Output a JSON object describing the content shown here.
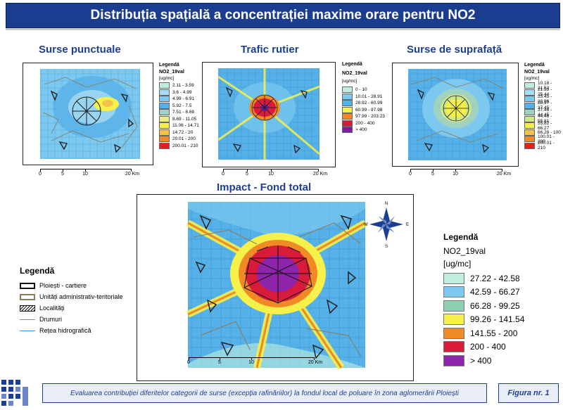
{
  "title": "Distribuția spațială a concentrației maxime orare pentru NO2",
  "maps": [
    {
      "subtitle": "Surse punctuale",
      "legend_title": "Legendă",
      "layer": "NO2_19val",
      "unit": "[ug/mc]",
      "classes": [
        "2.11 - 3.59",
        "3.6 - 4.99",
        "4.99 - 6.91",
        "5.92 - 7.5",
        "7.51 - 8.68",
        "8.69 - 11.05",
        "11.06 - 14.71",
        "14.72 - 20",
        "20.01 - 200",
        "200.01 - 210"
      ],
      "colors": [
        "#bfeee0",
        "#a8dcf3",
        "#7cc8ee",
        "#56b1e8",
        "#9fd3c0",
        "#e7ef80",
        "#f5f14a",
        "#f5c24a",
        "#f08a24",
        "#e0201c"
      ],
      "scale_labels": [
        "0",
        "5",
        "10",
        "20 Km"
      ]
    },
    {
      "subtitle": "Trafic rutier",
      "legend_title": "Legendă",
      "layer": "NO2_19val",
      "unit": "[ug/mc]",
      "classes": [
        "0 - 10",
        "10.01 - 28.91",
        "28.92 - 60.99",
        "60.99 - 97.98",
        "97.99 - 203.23",
        "200 - 400",
        "> 400"
      ],
      "colors": [
        "#bfeee0",
        "#7cc8ee",
        "#56b1e8",
        "#f5f14a",
        "#f08a24",
        "#d81b3a",
        "#7b1fa2"
      ],
      "scale_labels": [
        "0",
        "5",
        "10",
        "20 Km"
      ]
    },
    {
      "subtitle": "Surse de suprafață",
      "legend_title": "Legendă",
      "layer": "NO2_19val",
      "unit": "[ug/mc]",
      "classes": [
        "10.18 - 21.52",
        "21.53 - 25.44",
        "25.45 - 28.96",
        "28.97 - 37.45",
        "37.46 - 44.45",
        "44.46 - 55.81",
        "55.82 - 66.27",
        "66.28 - 100",
        "100.01 - 200",
        "200.01 - 210"
      ],
      "colors": [
        "#bfeee0",
        "#a8dcf3",
        "#7cc8ee",
        "#56b1e8",
        "#9fd3c0",
        "#cfe68a",
        "#f5f14a",
        "#f5c24a",
        "#f08a24",
        "#e0201c"
      ],
      "scale_labels": [
        "0",
        "5",
        "10",
        "20 Km"
      ]
    }
  ],
  "main_map": {
    "subtitle": "Impact - Fond total",
    "legend_title": "Legendă",
    "layer": "NO2_19val",
    "unit": "[ug/mc]",
    "classes": [
      "27.22 - 42.58",
      "42.59 - 66.27",
      "66.28 - 99.25",
      "99.26 - 141.54",
      "141.55 - 200",
      "200 - 400",
      "> 400"
    ],
    "colors": [
      "#bfeee0",
      "#7cc8ee",
      "#8fd0b0",
      "#f5f14a",
      "#f08a24",
      "#d81b3a",
      "#8e24aa"
    ],
    "scale_labels": [
      "0",
      "5",
      "10",
      "20 Km"
    ],
    "compass": [
      "N",
      "S",
      "E",
      "W"
    ]
  },
  "left_legend": {
    "title": "Legendă",
    "items": [
      {
        "label": "Ploiești - cartiere",
        "style": "box-black"
      },
      {
        "label": "Unități administrativ-teritoriale",
        "style": "box-tan"
      },
      {
        "label": "Localități",
        "style": "hatch"
      },
      {
        "label": "Drumuri",
        "style": "line-gray"
      },
      {
        "label": "Rețea hidrografică",
        "style": "line-blue"
      }
    ]
  },
  "footer": "Evaluarea contribuției diferitelor categorii de surse (excepția rafinăriilor) la fondul local de poluare în zona aglomerării Ploiești",
  "figure_label": "Figura nr. 1"
}
